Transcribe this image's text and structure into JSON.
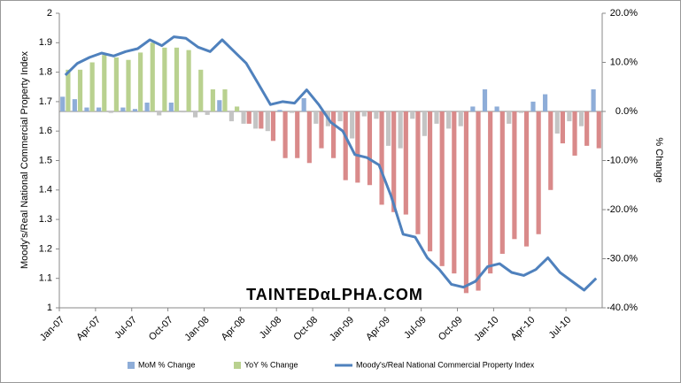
{
  "chart_data": {
    "type": "combo",
    "y_label": "Moody's/Real National Commercial Property Index",
    "y2_label": "% Change",
    "watermark": "TAINTEDαLPHA.COM",
    "categories": [
      "Jan-07",
      null,
      null,
      "Apr-07",
      null,
      null,
      "Jul-07",
      null,
      null,
      "Oct-07",
      null,
      null,
      "Jan-08",
      null,
      null,
      "Apr-08",
      null,
      null,
      "Jul-08",
      null,
      null,
      "Oct-08",
      null,
      null,
      "Jan-09",
      null,
      null,
      "Apr-09",
      null,
      null,
      "Jul-09",
      null,
      null,
      "Oct-09",
      null,
      null,
      "Jan-10",
      null,
      null,
      "Apr-10",
      null,
      null,
      "Jul-10",
      null,
      null
    ],
    "ylim": [
      1,
      2
    ],
    "yticks": [
      1,
      1.1,
      1.2,
      1.3,
      1.4,
      1.5,
      1.6,
      1.7,
      1.8,
      1.9,
      2
    ],
    "y2lim": [
      -40,
      20
    ],
    "y2ticks": [
      {
        "value": -40,
        "label": "-40.0%"
      },
      {
        "value": -30,
        "label": "-30.0%"
      },
      {
        "value": -20,
        "label": "-20.0%"
      },
      {
        "value": -10,
        "label": "-10.0%"
      },
      {
        "value": 0,
        "label": "0.0%"
      },
      {
        "value": 10,
        "label": "10.0%"
      },
      {
        "value": 20,
        "label": "20.0%"
      }
    ],
    "legend": "bottom",
    "series": [
      {
        "name": "MoM % Change",
        "type": "bar",
        "axis": "y2",
        "color": "#8eadd8",
        "negative_color": "#c4c4c4",
        "values": [
          3.0,
          2.5,
          0.8,
          0.8,
          -0.3,
          0.8,
          0.5,
          1.8,
          -0.8,
          1.8,
          -0.2,
          -1.2,
          -0.7,
          2.3,
          -2.0,
          -2.5,
          -3.5,
          -4.0,
          0.3,
          -0.3,
          2.7,
          -2.5,
          -3.0,
          -2.0,
          -5.5,
          -1.0,
          -1.5,
          -7.0,
          -7.5,
          -1.5,
          -5.0,
          -2.5,
          -3.5,
          -3.0,
          1.0,
          4.5,
          1.0,
          -2.5,
          -0.3,
          2.0,
          3.5,
          -4.5,
          -2.0,
          -3.0,
          4.5
        ]
      },
      {
        "name": "YoY % Change",
        "type": "bar",
        "axis": "y2",
        "color": "#b9d18f",
        "negative_color": "#d98a8a",
        "values": [
          8.5,
          8.5,
          10,
          11.5,
          11,
          10.5,
          12,
          14,
          13,
          13,
          12.5,
          8.5,
          4.5,
          4.5,
          1.0,
          -2.5,
          -3.5,
          -6,
          -9.5,
          -9.5,
          -10.5,
          -7.5,
          -9.5,
          -14,
          -14.5,
          -15,
          -19,
          -20.5,
          -21,
          -25,
          -28.5,
          -31.5,
          -33,
          -37,
          -36.5,
          -33,
          -29,
          -26,
          -27.5,
          -25,
          -16,
          -6.5,
          -9,
          -7,
          -7.5
        ]
      },
      {
        "name": "Moody's/Real National Commercial Property Index",
        "type": "line",
        "axis": "y",
        "color": "#4f81bd",
        "values": [
          1.79,
          1.83,
          1.85,
          1.865,
          1.855,
          1.87,
          1.88,
          1.91,
          1.89,
          1.92,
          1.915,
          1.885,
          1.87,
          1.91,
          1.87,
          1.83,
          1.76,
          1.69,
          1.7,
          1.695,
          1.74,
          1.69,
          1.63,
          1.6,
          1.52,
          1.51,
          1.485,
          1.38,
          1.25,
          1.24,
          1.17,
          1.13,
          1.08,
          1.07,
          1.09,
          1.14,
          1.15,
          1.12,
          1.11,
          1.13,
          1.17,
          1.12,
          1.09,
          1.06,
          1.1
        ]
      }
    ]
  }
}
